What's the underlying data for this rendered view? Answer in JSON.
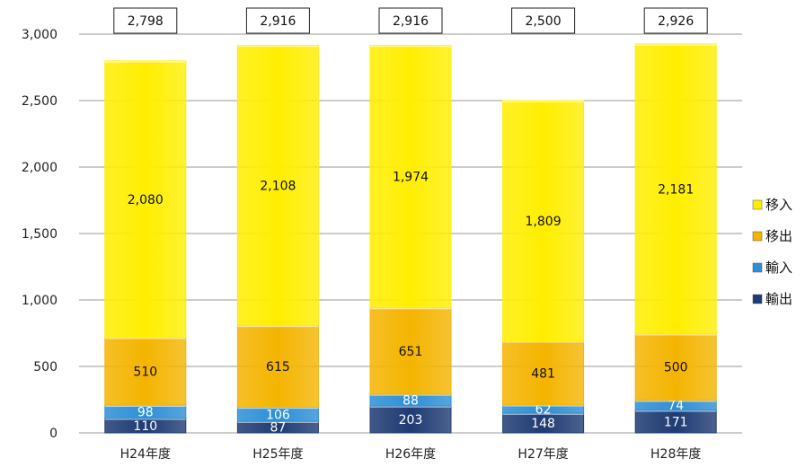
{
  "chart_data": {
    "type": "bar",
    "stacked": true,
    "categories": [
      "H24年度",
      "H25年度",
      "H26年度",
      "H27年度",
      "H28年度"
    ],
    "series": [
      {
        "name": "輸出",
        "values": [
          110,
          87,
          203,
          148,
          171
        ],
        "color": "#1f3b73",
        "label_color": "#ffffff"
      },
      {
        "name": "輸入",
        "values": [
          98,
          106,
          88,
          62,
          74
        ],
        "color": "#2e8fd6",
        "label_color": "#ffffff"
      },
      {
        "name": "移出",
        "values": [
          510,
          615,
          651,
          481,
          500
        ],
        "color": "#f4b400",
        "label_color": "#111111"
      },
      {
        "name": "移入",
        "values": [
          2080,
          2108,
          1974,
          1809,
          2181
        ],
        "color": "#ffee00",
        "label_color": "#111111"
      }
    ],
    "totals": [
      "2,798",
      "2,916",
      "2,916",
      "2,500",
      "2,926"
    ],
    "ylim": [
      0,
      3000
    ],
    "yticks": [
      0,
      500,
      1000,
      1500,
      2000,
      2500,
      3000
    ],
    "ytick_labels": [
      "0",
      "500",
      "1,000",
      "1,500",
      "2,000",
      "2,500",
      "3,000"
    ],
    "grid": true,
    "legend_position": "right",
    "legend_order": [
      "移入",
      "移出",
      "輸入",
      "輸出"
    ]
  }
}
